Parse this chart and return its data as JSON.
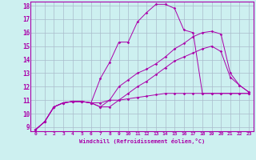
{
  "xlabel": "Windchill (Refroidissement éolien,°C)",
  "xlim": [
    -0.5,
    23.5
  ],
  "ylim": [
    8.7,
    18.3
  ],
  "xticks": [
    0,
    1,
    2,
    3,
    4,
    5,
    6,
    7,
    8,
    9,
    10,
    11,
    12,
    13,
    14,
    15,
    16,
    17,
    18,
    19,
    20,
    21,
    22,
    23
  ],
  "yticks": [
    9,
    10,
    11,
    12,
    13,
    14,
    15,
    16,
    17,
    18
  ],
  "bg_color": "#cdf0f0",
  "grid_color": "#aabbcc",
  "line_color": "#aa00aa",
  "lines": [
    {
      "x": [
        0,
        1,
        2,
        3,
        4,
        5,
        6,
        7,
        8,
        9,
        10,
        11,
        12,
        13,
        14,
        15,
        16,
        17,
        18,
        19,
        20,
        21,
        22,
        23
      ],
      "y": [
        8.8,
        9.4,
        10.5,
        10.8,
        10.9,
        10.9,
        10.8,
        12.6,
        13.8,
        15.3,
        15.3,
        16.8,
        17.5,
        18.1,
        18.1,
        17.8,
        16.2,
        16.0,
        11.5,
        11.5,
        11.5,
        11.5,
        11.5,
        11.5
      ]
    },
    {
      "x": [
        0,
        1,
        2,
        3,
        4,
        5,
        6,
        7,
        8,
        9,
        10,
        11,
        12,
        13,
        14,
        15,
        16,
        17,
        18,
        19,
        20,
        21,
        22,
        23
      ],
      "y": [
        8.8,
        9.4,
        10.5,
        10.8,
        10.9,
        10.9,
        10.8,
        10.5,
        11.0,
        12.0,
        12.5,
        13.0,
        13.3,
        13.7,
        14.2,
        14.8,
        15.2,
        15.7,
        16.0,
        16.1,
        15.9,
        13.0,
        12.1,
        11.6
      ]
    },
    {
      "x": [
        0,
        1,
        2,
        3,
        4,
        5,
        6,
        7,
        8,
        9,
        10,
        11,
        12,
        13,
        14,
        15,
        16,
        17,
        18,
        19,
        20,
        21,
        22,
        23
      ],
      "y": [
        8.8,
        9.4,
        10.5,
        10.8,
        10.9,
        10.9,
        10.8,
        10.5,
        10.5,
        11.0,
        11.5,
        12.0,
        12.4,
        12.9,
        13.4,
        13.9,
        14.2,
        14.5,
        14.8,
        15.0,
        14.6,
        12.7,
        12.1,
        11.6
      ]
    },
    {
      "x": [
        0,
        1,
        2,
        3,
        4,
        5,
        6,
        7,
        8,
        9,
        10,
        11,
        12,
        13,
        14,
        15,
        16,
        17,
        18,
        19,
        20,
        21,
        22,
        23
      ],
      "y": [
        8.8,
        9.4,
        10.5,
        10.8,
        10.9,
        10.9,
        10.8,
        10.8,
        11.0,
        11.0,
        11.1,
        11.2,
        11.3,
        11.4,
        11.5,
        11.5,
        11.5,
        11.5,
        11.5,
        11.5,
        11.5,
        11.5,
        11.5,
        11.5
      ]
    }
  ]
}
